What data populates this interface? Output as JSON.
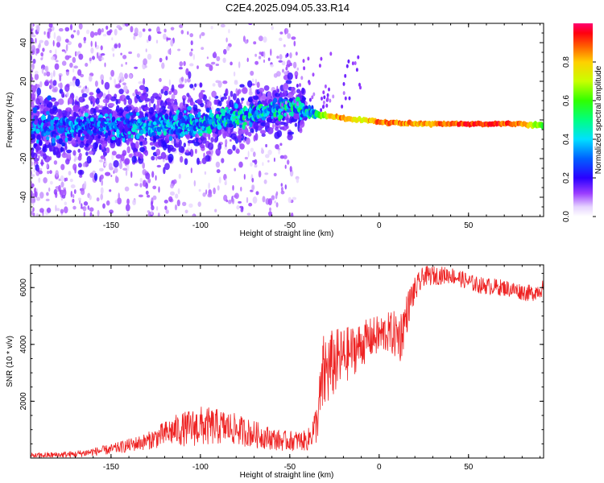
{
  "chart_data": [
    {
      "type": "heatmap",
      "title": "C2E4.2025.094.05.33.R14",
      "xlabel": "Height of straight line (km)",
      "ylabel": "Frequency (Hz)",
      "xlim": [
        -195,
        92
      ],
      "ylim": [
        -50,
        50
      ],
      "x_ticks": [
        -150,
        -100,
        -50,
        0,
        50
      ],
      "y_ticks": [
        -40,
        -20,
        0,
        20,
        40
      ],
      "colorbar": {
        "label": "Normalized spectral amplitude",
        "range": [
          0,
          1
        ],
        "ticks": [
          "0.0",
          "0.2",
          "0.4",
          "0.6",
          "0.8"
        ],
        "tick_values": [
          0.0,
          0.2,
          0.4,
          0.6,
          0.8
        ]
      },
      "ridge": [
        {
          "x": -195,
          "f": -3,
          "amp": 0.35,
          "spread": 10
        },
        {
          "x": -150,
          "f": -4,
          "amp": 0.4,
          "spread": 9
        },
        {
          "x": -100,
          "f": -2,
          "amp": 0.45,
          "spread": 8
        },
        {
          "x": -75,
          "f": 2,
          "amp": 0.5,
          "spread": 7
        },
        {
          "x": -50,
          "f": 7,
          "amp": 0.5,
          "spread": 6
        },
        {
          "x": -35,
          "f": 3,
          "amp": 0.55,
          "spread": 4
        },
        {
          "x": -28,
          "f": 2,
          "amp": 0.85,
          "spread": 2
        },
        {
          "x": -20,
          "f": 1,
          "amp": 0.95,
          "spread": 2
        },
        {
          "x": -10,
          "f": 0,
          "amp": 0.8,
          "spread": 2
        },
        {
          "x": 0,
          "f": -1,
          "amp": 0.95,
          "spread": 2
        },
        {
          "x": 20,
          "f": -2,
          "amp": 0.9,
          "spread": 2
        },
        {
          "x": 50,
          "f": -2,
          "amp": 1.0,
          "spread": 2
        },
        {
          "x": 80,
          "f": -2,
          "amp": 0.95,
          "spread": 2
        },
        {
          "x": 92,
          "f": -3,
          "amp": 0.6,
          "spread": 3
        }
      ]
    },
    {
      "type": "line",
      "xlabel": "Height of straight line (km)",
      "ylabel": "SNR (10 * v/v)",
      "xlim": [
        -195,
        92
      ],
      "ylim": [
        0,
        6800
      ],
      "x_ticks": [
        -150,
        -100,
        -50,
        0,
        50
      ],
      "y_ticks": [
        2000,
        4000,
        6000
      ],
      "series": [
        {
          "name": "SNR",
          "color": "#ee2222",
          "envelope": [
            {
              "x": -195,
              "y": 50,
              "noise": 150
            },
            {
              "x": -170,
              "y": 100,
              "noise": 200
            },
            {
              "x": -150,
              "y": 250,
              "noise": 300
            },
            {
              "x": -130,
              "y": 500,
              "noise": 500
            },
            {
              "x": -115,
              "y": 800,
              "noise": 900
            },
            {
              "x": -100,
              "y": 900,
              "noise": 1200
            },
            {
              "x": -85,
              "y": 900,
              "noise": 1000
            },
            {
              "x": -70,
              "y": 700,
              "noise": 800
            },
            {
              "x": -55,
              "y": 500,
              "noise": 600
            },
            {
              "x": -40,
              "y": 500,
              "noise": 600
            },
            {
              "x": -35,
              "y": 1000,
              "noise": 1200
            },
            {
              "x": -31,
              "y": 2500,
              "noise": 2500
            },
            {
              "x": -25,
              "y": 3000,
              "noise": 2000
            },
            {
              "x": -15,
              "y": 3500,
              "noise": 1500
            },
            {
              "x": -5,
              "y": 4000,
              "noise": 1200
            },
            {
              "x": 5,
              "y": 4200,
              "noise": 1200
            },
            {
              "x": 12,
              "y": 4000,
              "noise": 1600
            },
            {
              "x": 18,
              "y": 5500,
              "noise": 900
            },
            {
              "x": 25,
              "y": 6300,
              "noise": 600
            },
            {
              "x": 40,
              "y": 6350,
              "noise": 500
            },
            {
              "x": 55,
              "y": 6000,
              "noise": 500
            },
            {
              "x": 70,
              "y": 5900,
              "noise": 500
            },
            {
              "x": 85,
              "y": 5700,
              "noise": 500
            },
            {
              "x": 92,
              "y": 5900,
              "noise": 500
            }
          ]
        }
      ]
    }
  ]
}
